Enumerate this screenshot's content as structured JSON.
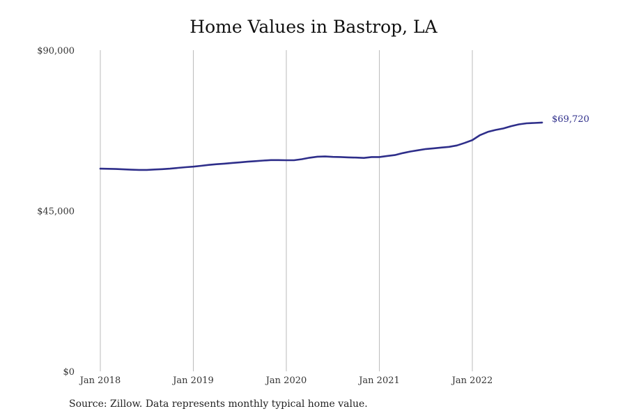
{
  "chart_data": {
    "type": "line",
    "title": "Home Values in Bastrop, LA",
    "xlabel": "",
    "ylabel": "",
    "x_tick_labels": [
      "Jan 2018",
      "Jan 2019",
      "Jan 2020",
      "Jan 2021",
      "Jan 2022"
    ],
    "y_tick_labels": [
      "$0",
      "$45,000",
      "$90,000"
    ],
    "y_ticks": [
      0,
      45000,
      90000
    ],
    "ylim": [
      0,
      90000
    ],
    "xlim": [
      "2018-01",
      "2022-10"
    ],
    "grid": "vertical",
    "legend": "none",
    "line_color": "#2e2e8a",
    "grid_color": "#bbbbbb",
    "end_label": "$69,720",
    "series": [
      {
        "x": [
          "2018-01",
          "2018-02",
          "2018-03",
          "2018-04",
          "2018-05",
          "2018-06",
          "2018-07",
          "2018-08",
          "2018-09",
          "2018-10",
          "2018-11",
          "2018-12",
          "2019-01",
          "2019-02",
          "2019-03",
          "2019-04",
          "2019-05",
          "2019-06",
          "2019-07",
          "2019-08",
          "2019-09",
          "2019-10",
          "2019-11",
          "2019-12",
          "2020-01",
          "2020-02",
          "2020-03",
          "2020-04",
          "2020-05",
          "2020-06",
          "2020-07",
          "2020-08",
          "2020-09",
          "2020-10",
          "2020-11",
          "2020-12",
          "2021-01",
          "2021-02",
          "2021-03",
          "2021-04",
          "2021-05",
          "2021-06",
          "2021-07",
          "2021-08",
          "2021-09",
          "2021-10",
          "2021-11",
          "2021-12",
          "2022-01",
          "2022-02",
          "2022-03",
          "2022-04",
          "2022-05",
          "2022-06",
          "2022-07",
          "2022-08",
          "2022-09",
          "2022-10"
        ],
        "values": [
          56800,
          56750,
          56700,
          56600,
          56500,
          56450,
          56450,
          56550,
          56650,
          56800,
          57000,
          57200,
          57350,
          57600,
          57850,
          58050,
          58200,
          58400,
          58550,
          58750,
          58900,
          59050,
          59200,
          59200,
          59150,
          59150,
          59450,
          59850,
          60150,
          60200,
          60100,
          60050,
          59950,
          59900,
          59800,
          60050,
          60050,
          60350,
          60600,
          61150,
          61600,
          61950,
          62300,
          62500,
          62700,
          62900,
          63300,
          64000,
          64800,
          66200,
          67100,
          67650,
          68050,
          68700,
          69200,
          69500,
          69600,
          69720
        ]
      }
    ]
  },
  "footer": {
    "source": "Source: Zillow. Data represents monthly typical home value."
  }
}
